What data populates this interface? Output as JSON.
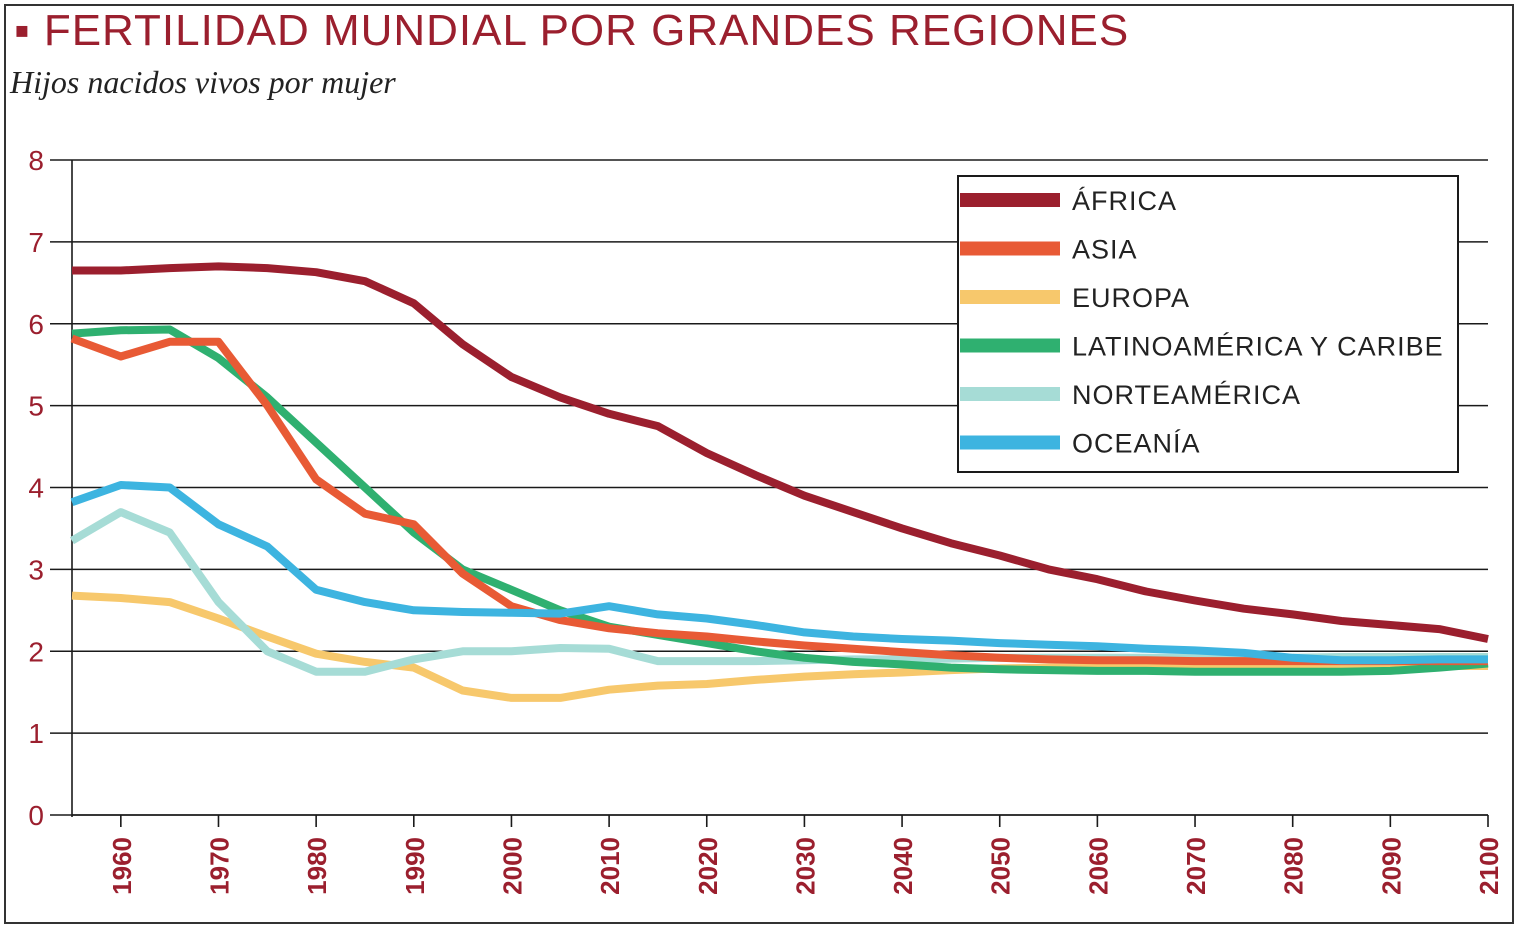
{
  "title": "FERTILIDAD MUNDIAL POR GRANDES REGIONES",
  "subtitle": "Hijos nacidos vivos por mujer",
  "chart_data": {
    "type": "line",
    "title": "FERTILIDAD MUNDIAL POR GRANDES REGIONES",
    "subtitle": "Hijos nacidos vivos por mujer",
    "xlabel": "",
    "ylabel": "",
    "xlim": [
      1955,
      2100
    ],
    "ylim": [
      0,
      8
    ],
    "yticks": [
      "0",
      "1",
      "2",
      "3",
      "4",
      "5",
      "6",
      "7",
      "8"
    ],
    "xticks": [
      "1960",
      "1970",
      "1980",
      "1990",
      "2000",
      "2010",
      "2020",
      "2030",
      "2040",
      "2050",
      "2060",
      "2070",
      "2080",
      "2090",
      "2100"
    ],
    "grid": "horizontal",
    "legend_position": "top-right",
    "series": [
      {
        "name": "ÁFRICA",
        "color": "#9b1f2e",
        "points": [
          [
            1955,
            6.65
          ],
          [
            1960,
            6.65
          ],
          [
            1965,
            6.68
          ],
          [
            1970,
            6.7
          ],
          [
            1975,
            6.68
          ],
          [
            1980,
            6.63
          ],
          [
            1985,
            6.52
          ],
          [
            1990,
            6.25
          ],
          [
            1995,
            5.75
          ],
          [
            2000,
            5.35
          ],
          [
            2005,
            5.1
          ],
          [
            2010,
            4.9
          ],
          [
            2015,
            4.75
          ],
          [
            2020,
            4.42
          ],
          [
            2025,
            4.15
          ],
          [
            2030,
            3.9
          ],
          [
            2035,
            3.7
          ],
          [
            2040,
            3.5
          ],
          [
            2045,
            3.32
          ],
          [
            2050,
            3.17
          ],
          [
            2055,
            3.0
          ],
          [
            2060,
            2.88
          ],
          [
            2065,
            2.73
          ],
          [
            2070,
            2.62
          ],
          [
            2075,
            2.52
          ],
          [
            2080,
            2.45
          ],
          [
            2085,
            2.37
          ],
          [
            2090,
            2.32
          ],
          [
            2095,
            2.27
          ],
          [
            2100,
            2.15
          ]
        ]
      },
      {
        "name": "ASIA",
        "color": "#e85a35",
        "points": [
          [
            1955,
            5.82
          ],
          [
            1960,
            5.6
          ],
          [
            1965,
            5.78
          ],
          [
            1970,
            5.78
          ],
          [
            1975,
            5.0
          ],
          [
            1980,
            4.1
          ],
          [
            1985,
            3.68
          ],
          [
            1990,
            3.55
          ],
          [
            1995,
            2.95
          ],
          [
            2000,
            2.55
          ],
          [
            2005,
            2.38
          ],
          [
            2010,
            2.28
          ],
          [
            2015,
            2.22
          ],
          [
            2020,
            2.18
          ],
          [
            2025,
            2.12
          ],
          [
            2030,
            2.07
          ],
          [
            2035,
            2.03
          ],
          [
            2040,
            1.99
          ],
          [
            2045,
            1.95
          ],
          [
            2050,
            1.92
          ],
          [
            2055,
            1.9
          ],
          [
            2060,
            1.89
          ],
          [
            2065,
            1.89
          ],
          [
            2070,
            1.88
          ],
          [
            2075,
            1.88
          ],
          [
            2080,
            1.88
          ],
          [
            2085,
            1.88
          ],
          [
            2090,
            1.88
          ],
          [
            2095,
            1.88
          ],
          [
            2100,
            1.88
          ]
        ]
      },
      {
        "name": "EUROPA",
        "color": "#f7c86c",
        "points": [
          [
            1955,
            2.68
          ],
          [
            1960,
            2.65
          ],
          [
            1965,
            2.6
          ],
          [
            1970,
            2.4
          ],
          [
            1975,
            2.18
          ],
          [
            1980,
            1.97
          ],
          [
            1985,
            1.87
          ],
          [
            1990,
            1.8
          ],
          [
            1995,
            1.52
          ],
          [
            2000,
            1.43
          ],
          [
            2005,
            1.43
          ],
          [
            2010,
            1.53
          ],
          [
            2015,
            1.58
          ],
          [
            2020,
            1.6
          ],
          [
            2025,
            1.65
          ],
          [
            2030,
            1.69
          ],
          [
            2035,
            1.72
          ],
          [
            2040,
            1.74
          ],
          [
            2045,
            1.77
          ],
          [
            2050,
            1.79
          ],
          [
            2055,
            1.8
          ],
          [
            2060,
            1.8
          ],
          [
            2065,
            1.81
          ],
          [
            2070,
            1.81
          ],
          [
            2075,
            1.81
          ],
          [
            2080,
            1.81
          ],
          [
            2085,
            1.82
          ],
          [
            2090,
            1.82
          ],
          [
            2095,
            1.82
          ],
          [
            2100,
            1.82
          ]
        ]
      },
      {
        "name": "LATINOAMÉRICA Y CARIBE",
        "color": "#2fb070",
        "points": [
          [
            1955,
            5.88
          ],
          [
            1960,
            5.92
          ],
          [
            1965,
            5.93
          ],
          [
            1970,
            5.58
          ],
          [
            1975,
            5.1
          ],
          [
            1980,
            4.55
          ],
          [
            1985,
            4.0
          ],
          [
            1990,
            3.45
          ],
          [
            1995,
            3.0
          ],
          [
            2000,
            2.75
          ],
          [
            2005,
            2.5
          ],
          [
            2010,
            2.3
          ],
          [
            2015,
            2.2
          ],
          [
            2020,
            2.1
          ],
          [
            2025,
            2.0
          ],
          [
            2030,
            1.92
          ],
          [
            2035,
            1.87
          ],
          [
            2040,
            1.84
          ],
          [
            2045,
            1.8
          ],
          [
            2050,
            1.78
          ],
          [
            2055,
            1.77
          ],
          [
            2060,
            1.76
          ],
          [
            2065,
            1.76
          ],
          [
            2070,
            1.75
          ],
          [
            2075,
            1.75
          ],
          [
            2080,
            1.75
          ],
          [
            2085,
            1.75
          ],
          [
            2090,
            1.76
          ],
          [
            2095,
            1.8
          ],
          [
            2100,
            1.85
          ]
        ]
      },
      {
        "name": "NORTEAMÉRICA",
        "color": "#a6dcd6",
        "points": [
          [
            1955,
            3.35
          ],
          [
            1960,
            3.7
          ],
          [
            1965,
            3.45
          ],
          [
            1970,
            2.6
          ],
          [
            1975,
            2.0
          ],
          [
            1980,
            1.75
          ],
          [
            1985,
            1.75
          ],
          [
            1990,
            1.9
          ],
          [
            1995,
            2.0
          ],
          [
            2000,
            2.0
          ],
          [
            2005,
            2.04
          ],
          [
            2010,
            2.03
          ],
          [
            2015,
            1.88
          ],
          [
            2020,
            1.88
          ],
          [
            2025,
            1.88
          ],
          [
            2030,
            1.89
          ],
          [
            2035,
            1.9
          ],
          [
            2040,
            1.9
          ],
          [
            2045,
            1.91
          ],
          [
            2050,
            1.92
          ],
          [
            2055,
            1.92
          ],
          [
            2060,
            1.92
          ],
          [
            2065,
            1.92
          ],
          [
            2070,
            1.92
          ],
          [
            2075,
            1.92
          ],
          [
            2080,
            1.92
          ],
          [
            2085,
            1.93
          ],
          [
            2090,
            1.93
          ],
          [
            2095,
            1.93
          ],
          [
            2100,
            1.93
          ]
        ]
      },
      {
        "name": "OCEANÍA",
        "color": "#3db4e0",
        "points": [
          [
            1955,
            3.82
          ],
          [
            1960,
            4.03
          ],
          [
            1965,
            4.0
          ],
          [
            1970,
            3.55
          ],
          [
            1975,
            3.28
          ],
          [
            1980,
            2.75
          ],
          [
            1985,
            2.6
          ],
          [
            1990,
            2.5
          ],
          [
            1995,
            2.48
          ],
          [
            2000,
            2.47
          ],
          [
            2005,
            2.46
          ],
          [
            2010,
            2.55
          ],
          [
            2015,
            2.45
          ],
          [
            2020,
            2.4
          ],
          [
            2025,
            2.32
          ],
          [
            2030,
            2.23
          ],
          [
            2035,
            2.18
          ],
          [
            2040,
            2.15
          ],
          [
            2045,
            2.13
          ],
          [
            2050,
            2.1
          ],
          [
            2055,
            2.08
          ],
          [
            2060,
            2.06
          ],
          [
            2065,
            2.03
          ],
          [
            2070,
            2.01
          ],
          [
            2075,
            1.98
          ],
          [
            2080,
            1.92
          ],
          [
            2085,
            1.89
          ],
          [
            2090,
            1.89
          ],
          [
            2095,
            1.9
          ],
          [
            2100,
            1.9
          ]
        ]
      }
    ]
  }
}
